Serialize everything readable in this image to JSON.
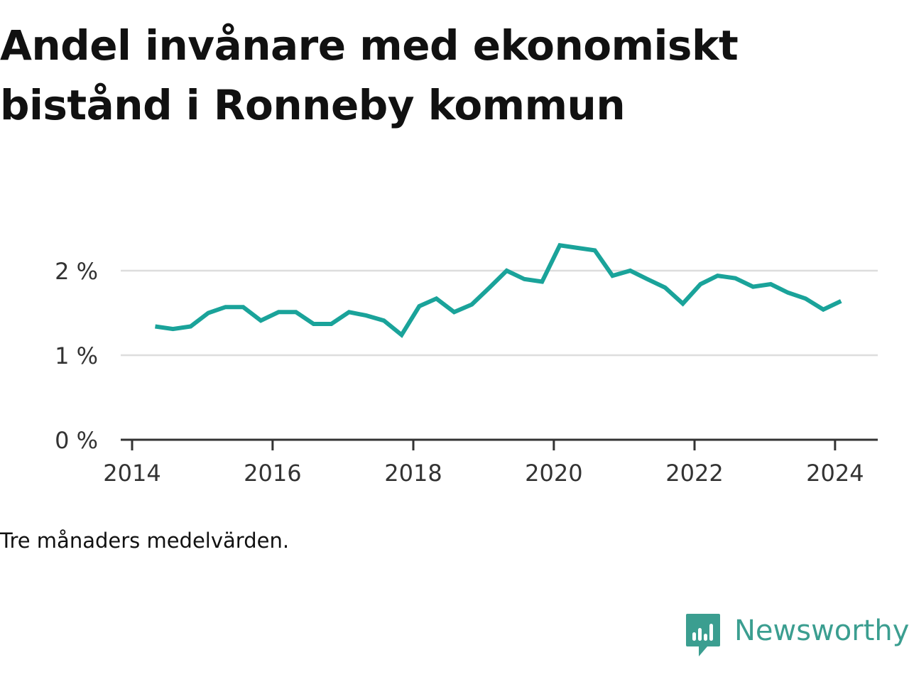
{
  "title": "Andel invånare med ekonomiskt bistånd i Ronneby kommun",
  "caption": "Tre månaders medelvärden.",
  "brand": {
    "name": "Newsworthy",
    "icon": "newsworthy-logo-icon",
    "color": "#3b9e90"
  },
  "colors": {
    "line": "#1aa39a",
    "grid": "#dddddd",
    "axis": "#333333"
  },
  "chart_data": {
    "type": "line",
    "title": "Andel invånare med ekonomiskt bistånd i Ronneby kommun",
    "xlabel": "",
    "ylabel": "",
    "ylim": [
      0,
      2.6
    ],
    "xlim": [
      "2013-09-01",
      "2024-07-01"
    ],
    "y_ticks": [
      0,
      1,
      2
    ],
    "y_tick_labels": [
      "0 %",
      "1 %",
      "2 %"
    ],
    "x_ticks": [
      "2014-01-01",
      "2016-01-01",
      "2018-01-01",
      "2020-01-01",
      "2022-01-01",
      "2024-01-01"
    ],
    "x_tick_labels": [
      "2014",
      "2016",
      "2018",
      "2020",
      "2022",
      "2024"
    ],
    "grid": true,
    "series": [
      {
        "x": [
          "2014-05-01",
          "2014-08-01",
          "2014-11-01",
          "2015-02-01",
          "2015-05-01",
          "2015-08-01",
          "2015-11-01",
          "2016-02-01",
          "2016-05-01",
          "2016-08-01",
          "2016-11-01",
          "2017-02-01",
          "2017-05-01",
          "2017-08-01",
          "2017-11-01",
          "2018-02-01",
          "2018-05-01",
          "2018-08-01",
          "2018-11-01",
          "2019-02-01",
          "2019-05-01",
          "2019-08-01",
          "2019-11-01",
          "2020-02-01",
          "2020-05-01",
          "2020-08-01",
          "2020-11-01",
          "2021-02-01",
          "2021-05-01",
          "2021-08-01",
          "2021-11-01",
          "2022-02-01",
          "2022-05-01",
          "2022-08-01",
          "2022-11-01",
          "2023-02-01",
          "2023-05-01",
          "2023-08-01",
          "2023-11-01",
          "2024-02-01"
        ],
        "values": [
          1.34,
          1.31,
          1.34,
          1.5,
          1.57,
          1.57,
          1.41,
          1.51,
          1.51,
          1.37,
          1.37,
          1.51,
          1.47,
          1.41,
          1.24,
          1.58,
          1.67,
          1.51,
          1.6,
          1.8,
          2.0,
          1.9,
          1.87,
          2.3,
          2.27,
          2.24,
          1.94,
          2.0,
          1.9,
          1.8,
          1.61,
          1.84,
          1.94,
          1.91,
          1.81,
          1.84,
          1.74,
          1.67,
          1.54,
          1.64
        ]
      }
    ]
  }
}
